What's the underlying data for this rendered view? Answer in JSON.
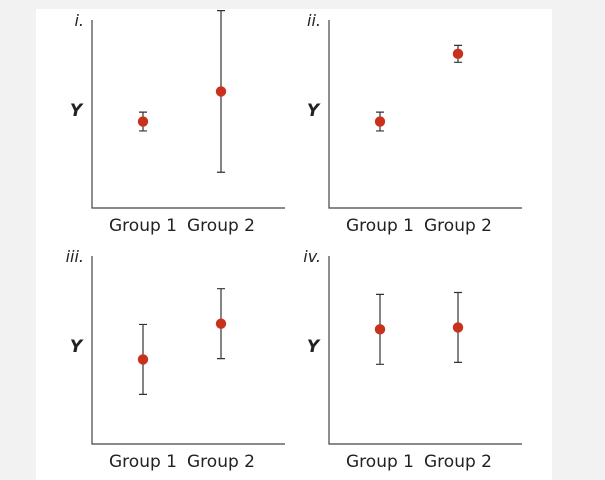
{
  "chart_data": [
    {
      "type": "scatter",
      "panel_label": "i.",
      "ylabel": "Y",
      "xlabel": "",
      "categories": [
        "Group 1",
        "Group 2"
      ],
      "means": [
        46,
        62
      ],
      "errors": [
        5,
        43
      ],
      "ylim": [
        0,
        100
      ],
      "grid": false,
      "point_color": "#c8321c"
    },
    {
      "type": "scatter",
      "panel_label": "ii.",
      "ylabel": "Y",
      "xlabel": "",
      "categories": [
        "Group 1",
        "Group 2"
      ],
      "means": [
        46,
        82
      ],
      "errors": [
        5,
        4.5
      ],
      "ylim": [
        0,
        100
      ],
      "grid": false,
      "point_color": "#c8321c"
    },
    {
      "type": "scatter",
      "panel_label": "iii.",
      "ylabel": "Y",
      "xlabel": "",
      "categories": [
        "Group 1",
        "Group 2"
      ],
      "means": [
        45,
        64
      ],
      "errors": [
        18.6,
        18.6
      ],
      "ylim": [
        0,
        100
      ],
      "grid": false,
      "point_color": "#c8321c"
    },
    {
      "type": "scatter",
      "panel_label": "iv.",
      "ylabel": "Y",
      "xlabel": "",
      "categories": [
        "Group 1",
        "Group 2"
      ],
      "means": [
        61,
        62
      ],
      "errors": [
        18.6,
        18.6
      ],
      "ylim": [
        0,
        100
      ],
      "grid": false,
      "point_color": "#c8321c"
    }
  ]
}
